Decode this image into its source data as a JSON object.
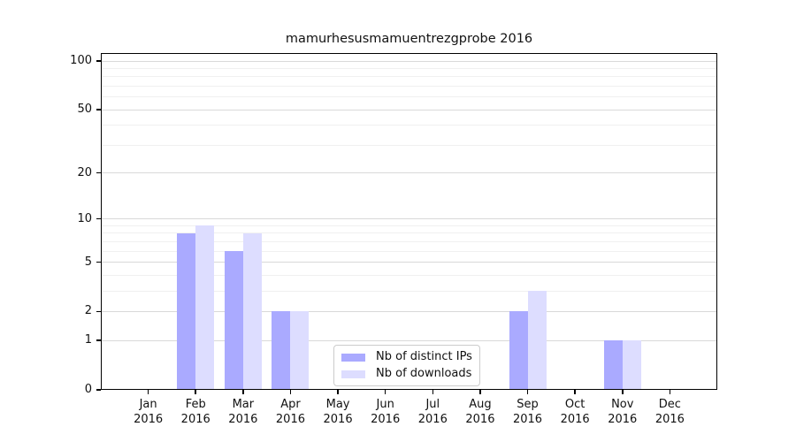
{
  "figure": {
    "background": "#ffffff",
    "axis_color": "#000000"
  },
  "chart_data": {
    "type": "bar",
    "title": "mamurhesusmamuentrezgprobe 2016",
    "categories": [
      "Jan",
      "Feb",
      "Mar",
      "Apr",
      "May",
      "Jun",
      "Jul",
      "Aug",
      "Sep",
      "Oct",
      "Nov",
      "Dec"
    ],
    "x_year_line": "2016",
    "series": [
      {
        "name": "Nb of distinct IPs",
        "color": "#aaaaff",
        "values": [
          0,
          8,
          6,
          2,
          0,
          0,
          0,
          0,
          2,
          0,
          1,
          0
        ]
      },
      {
        "name": "Nb of downloads",
        "color": "#ddddff",
        "values": [
          0,
          9,
          8,
          2,
          0,
          0,
          0,
          0,
          3,
          0,
          1,
          0
        ]
      }
    ],
    "yscale": "log1p",
    "ylim": [
      0,
      112
    ],
    "xlabel": "",
    "ylabel": "",
    "ytick_values": [
      0,
      1,
      2,
      5,
      10,
      20,
      50,
      100
    ],
    "ytick_labels": [
      "0",
      "1",
      "2",
      "5",
      "10",
      "20",
      "50",
      "100"
    ],
    "grid": {
      "orientation": "horizontal",
      "major_values": [
        1,
        2,
        5,
        10,
        20,
        50,
        100
      ],
      "minor_values": [
        3,
        4,
        6,
        7,
        8,
        9,
        30,
        40,
        60,
        70,
        80,
        90
      ],
      "major_color": "#d9d9d9",
      "minor_color": "#f0f0f0"
    },
    "legend": {
      "position": "inside-bottom-center",
      "entries": [
        "Nb of distinct IPs",
        "Nb of downloads"
      ]
    }
  }
}
